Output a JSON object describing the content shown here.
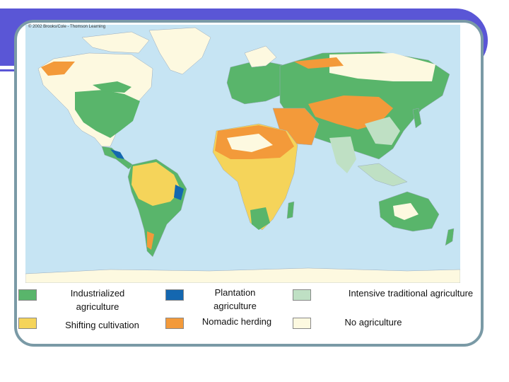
{
  "map": {
    "copyright": "© 2002 Brooks/Cole - Thomson Learning",
    "colors": {
      "ocean": "#c6e4f3",
      "industrialized": "#59b56b",
      "plantation": "#1467b0",
      "intensive_traditional": "#bfe0c4",
      "shifting": "#f5d45a",
      "nomadic": "#f39a3a",
      "none": "#fdf9e0"
    }
  },
  "legend": {
    "items": [
      {
        "label": "Industrialized agriculture",
        "color": "#59b56b"
      },
      {
        "label": "Plantation agriculture",
        "color": "#1467b0"
      },
      {
        "label": "Intensive traditional agriculture",
        "color": "#bfe0c4"
      },
      {
        "label": "Shifting cultivation",
        "color": "#f5d45a"
      },
      {
        "label": "Nomadic herding",
        "color": "#f39a3a"
      },
      {
        "label": "No agriculture",
        "color": "#fdf9e0"
      }
    ]
  }
}
